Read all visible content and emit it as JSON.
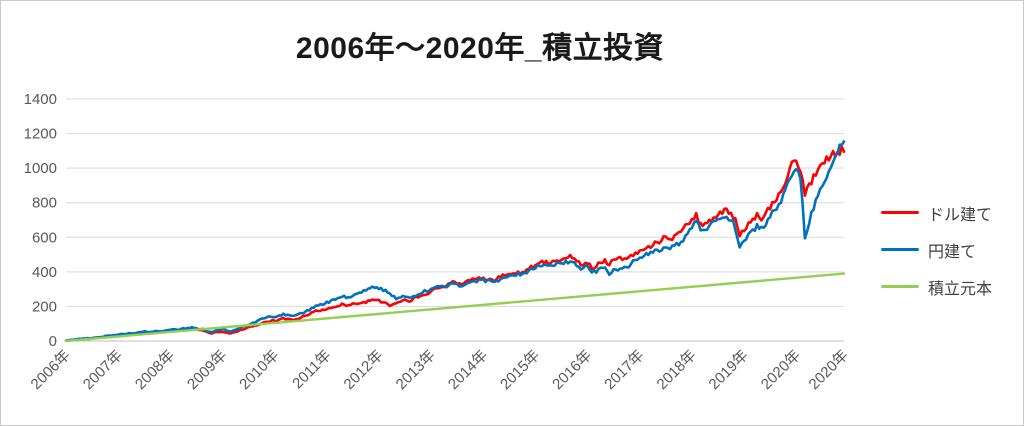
{
  "chart_data": {
    "type": "line",
    "title": "2006年～2020年_積立投資",
    "xlabel": "",
    "ylabel": "",
    "ylim": [
      0,
      1400
    ],
    "y_ticks": [
      0,
      200,
      400,
      600,
      800,
      1000,
      1200,
      1400
    ],
    "grid": "horizontal",
    "legend_position": "right",
    "x_unit": "month",
    "x_points": 180,
    "x_ticks": [
      {
        "label": "2006年",
        "m": 0
      },
      {
        "label": "2007年",
        "m": 12
      },
      {
        "label": "2008年",
        "m": 24
      },
      {
        "label": "2009年",
        "m": 36
      },
      {
        "label": "2010年",
        "m": 48
      },
      {
        "label": "2011年",
        "m": 60
      },
      {
        "label": "2012年",
        "m": 72
      },
      {
        "label": "2013年",
        "m": 84
      },
      {
        "label": "2014年",
        "m": 96
      },
      {
        "label": "2015年",
        "m": 108
      },
      {
        "label": "2016年",
        "m": 120
      },
      {
        "label": "2017年",
        "m": 132
      },
      {
        "label": "2018年",
        "m": 144
      },
      {
        "label": "2019年",
        "m": 156
      },
      {
        "label": "2020年",
        "m": 168
      },
      {
        "label": "2020年",
        "m": 179
      }
    ],
    "series": [
      {
        "name": "ドル建て",
        "color": "#FF0000",
        "values": [
          2,
          4,
          6,
          9,
          12,
          14,
          16,
          19,
          22,
          25,
          28,
          31,
          34,
          37,
          40,
          42,
          45,
          47,
          50,
          47,
          51,
          55,
          52,
          56,
          61,
          65,
          60,
          66,
          72,
          75,
          68,
          63,
          58,
          44,
          48,
          52,
          55,
          48,
          45,
          52,
          62,
          70,
          78,
          85,
          92,
          102,
          112,
          116,
          118,
          125,
          132,
          128,
          122,
          128,
          135,
          145,
          155,
          168,
          175,
          180,
          185,
          192,
          198,
          206,
          212,
          205,
          215,
          210,
          218,
          225,
          232,
          238,
          235,
          225,
          215,
          205,
          222,
          230,
          238,
          232,
          245,
          252,
          260,
          270,
          285,
          300,
          312,
          318,
          330,
          342,
          335,
          328,
          338,
          348,
          356,
          362,
          365,
          358,
          352,
          362,
          370,
          378,
          385,
          392,
          400,
          396,
          412,
          430,
          440,
          448,
          455,
          452,
          460,
          468,
          475,
          482,
          492,
          480,
          455,
          445,
          455,
          425,
          430,
          460,
          465,
          440,
          465,
          475,
          472,
          478,
          492,
          510,
          520,
          532,
          545,
          558,
          572,
          585,
          595,
          590,
          605,
          622,
          645,
          672,
          700,
          745,
          672,
          685,
          700,
          715,
          728,
          740,
          762,
          740,
          700,
          610,
          640,
          680,
          710,
          730,
          700,
          735,
          770,
          800,
          850,
          900,
          960,
          1020,
          1040,
          980,
          830,
          900,
          950,
          1000,
          1030,
          1060,
          1080,
          1060,
          1090,
          1110
        ]
      },
      {
        "name": "円建て",
        "color": "#0070C0",
        "values": [
          2,
          5,
          8,
          11,
          14,
          16,
          18,
          21,
          24,
          28,
          31,
          34,
          37,
          40,
          43,
          45,
          48,
          51,
          54,
          51,
          55,
          59,
          56,
          61,
          66,
          70,
          66,
          72,
          78,
          80,
          74,
          70,
          65,
          52,
          56,
          60,
          70,
          62,
          55,
          63,
          75,
          85,
          95,
          105,
          115,
          128,
          135,
          138,
          140,
          148,
          155,
          150,
          145,
          152,
          160,
          170,
          180,
          195,
          205,
          212,
          225,
          232,
          240,
          252,
          258,
          250,
          262,
          270,
          282,
          295,
          305,
          310,
          305,
          295,
          280,
          262,
          243,
          250,
          258,
          252,
          265,
          272,
          280,
          290,
          300,
          310,
          318,
          312,
          325,
          335,
          330,
          322,
          330,
          340,
          348,
          355,
          355,
          348,
          344,
          352,
          358,
          365,
          372,
          380,
          388,
          383,
          398,
          415,
          425,
          432,
          438,
          434,
          442,
          450,
          455,
          460,
          463,
          455,
          430,
          420,
          430,
          395,
          400,
          428,
          432,
          380,
          408,
          415,
          418,
          428,
          450,
          472,
          480,
          490,
          498,
          508,
          520,
          532,
          540,
          535,
          548,
          562,
          585,
          615,
          660,
          690,
          635,
          650,
          668,
          685,
          700,
          712,
          725,
          705,
          650,
          550,
          575,
          610,
          640,
          665,
          650,
          680,
          720,
          750,
          790,
          840,
          900,
          960,
          990,
          930,
          600,
          690,
          770,
          840,
          900,
          950,
          1010,
          1080,
          1130,
          1155
        ]
      },
      {
        "name": "積立元本",
        "color": "#92D050",
        "linear": {
          "start": 0,
          "end": 390
        }
      }
    ]
  },
  "theme": {
    "grid_color": "#D9D9D9",
    "axis_line_color": "#BFBFBF",
    "tick_text_color": "#595959",
    "title_text_color": "#1A1A1A",
    "legend_text_color": "#404040",
    "background": "#FFFFFF",
    "border_color": "#C9C9C9"
  }
}
